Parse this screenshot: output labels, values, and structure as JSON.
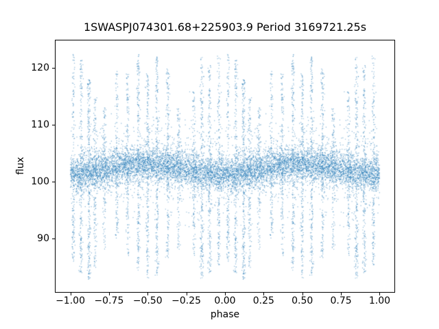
{
  "chart_data": {
    "type": "scatter",
    "title": "1SWASPJ074301.68+225903.9 Period 3169721.25s",
    "xlabel": "phase",
    "ylabel": "flux",
    "xlim": [
      -1.1,
      1.1
    ],
    "ylim": [
      80.5,
      125.0
    ],
    "grid": false,
    "legend": "none",
    "x_ticks": [
      {
        "value": -1.0,
        "label": "−1.00"
      },
      {
        "value": -0.75,
        "label": "−0.75"
      },
      {
        "value": -0.5,
        "label": "−0.50"
      },
      {
        "value": -0.25,
        "label": "−0.25"
      },
      {
        "value": 0.0,
        "label": "0.00"
      },
      {
        "value": 0.25,
        "label": "0.25"
      },
      {
        "value": 0.5,
        "label": "0.50"
      },
      {
        "value": 0.75,
        "label": "0.75"
      },
      {
        "value": 1.0,
        "label": "1.00"
      }
    ],
    "y_ticks": [
      {
        "value": 90,
        "label": "90"
      },
      {
        "value": 100,
        "label": "100"
      },
      {
        "value": 110,
        "label": "110"
      },
      {
        "value": 120,
        "label": "120"
      }
    ],
    "marker": {
      "color": "#1f77b4",
      "radius": 0.7,
      "alpha": 0.55
    },
    "description": "Phase-folded SuperWASP light curve; dense flux band near 102 with quasi-periodic vertical streaks of outliers spanning roughly 83 to 122.5; data in phase 0-1 duplicated at phase minus 1.",
    "generator": {
      "seed": 42,
      "streak_width": 0.005,
      "wave": {
        "amplitude": 0.9,
        "phase_offset": 0.25
      },
      "band": {
        "n": 5200,
        "mean": 102.3,
        "sd": 1.4,
        "wide_fraction": 0.22,
        "wide_sd": 3.5,
        "clip_min": 85.5,
        "clip_max": 116.5
      },
      "streaks": [
        {
          "phase": 0.02,
          "max": 122.5,
          "min": 86.0,
          "n": 160
        },
        {
          "phase": 0.07,
          "max": 121.5,
          "min": 84.0,
          "n": 200
        },
        {
          "phase": 0.12,
          "max": 118.0,
          "min": 82.8,
          "n": 260
        },
        {
          "phase": 0.16,
          "max": 115.0,
          "min": 84.5,
          "n": 140
        },
        {
          "phase": 0.22,
          "max": 113.0,
          "min": 88.0,
          "n": 110
        },
        {
          "phase": 0.3,
          "max": 120.0,
          "min": 90.0,
          "n": 130
        },
        {
          "phase": 0.37,
          "max": 119.0,
          "min": 87.0,
          "n": 150
        },
        {
          "phase": 0.44,
          "max": 122.5,
          "min": 84.0,
          "n": 210
        },
        {
          "phase": 0.5,
          "max": 119.0,
          "min": 83.0,
          "n": 200
        },
        {
          "phase": 0.56,
          "max": 122.0,
          "min": 83.5,
          "n": 210
        },
        {
          "phase": 0.63,
          "max": 120.0,
          "min": 86.0,
          "n": 170
        },
        {
          "phase": 0.7,
          "max": 113.0,
          "min": 88.0,
          "n": 110
        },
        {
          "phase": 0.8,
          "max": 116.0,
          "min": 87.0,
          "n": 130
        },
        {
          "phase": 0.85,
          "max": 122.0,
          "min": 82.8,
          "n": 220
        },
        {
          "phase": 0.9,
          "max": 120.5,
          "min": 84.0,
          "n": 190
        },
        {
          "phase": 0.96,
          "max": 122.5,
          "min": 85.0,
          "n": 180
        }
      ]
    }
  }
}
